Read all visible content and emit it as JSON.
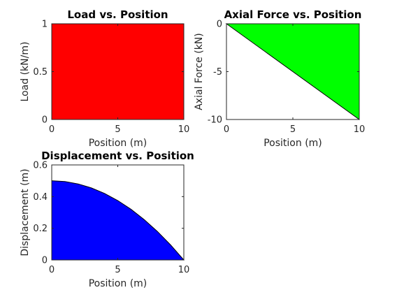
{
  "figure": {
    "background": "#ffffff"
  },
  "chart_data": [
    {
      "type": "area",
      "title": "Load vs. Position",
      "xlabel": "Position (m)",
      "ylabel": "Load (kN/m)",
      "xlim": [
        0,
        10
      ],
      "ylim": [
        0,
        1
      ],
      "xticks": [
        0,
        5,
        10
      ],
      "yticks": [
        0,
        0.5,
        1
      ],
      "xtick_labels": [
        "0",
        "5",
        "10"
      ],
      "ytick_labels": [
        "0",
        "0.5",
        "1"
      ],
      "fill_color": "#ff0000",
      "fill_baseline": 0,
      "x": [
        0,
        10
      ],
      "y": [
        1,
        1
      ]
    },
    {
      "type": "area",
      "title": "Axial Force vs. Position",
      "xlabel": "Position (m)",
      "ylabel": "Axial Force (kN)",
      "xlim": [
        0,
        10
      ],
      "ylim": [
        -10,
        0
      ],
      "xticks": [
        0,
        5,
        10
      ],
      "yticks": [
        -10,
        -5,
        0
      ],
      "xtick_labels": [
        "0",
        "5",
        "10"
      ],
      "ytick_labels": [
        "-10",
        "-5",
        "0"
      ],
      "fill_color": "#00ff00",
      "fill_baseline": 0,
      "x": [
        0,
        10
      ],
      "y": [
        0,
        -10
      ]
    },
    {
      "type": "area",
      "title": "Displacement vs. Position",
      "xlabel": "Position (m)",
      "ylabel": "Displacement (m)",
      "xlim": [
        0,
        10
      ],
      "ylim": [
        0,
        0.6
      ],
      "xticks": [
        0,
        5,
        10
      ],
      "yticks": [
        0,
        0.2,
        0.4,
        0.6
      ],
      "xtick_labels": [
        "0",
        "5",
        "10"
      ],
      "ytick_labels": [
        "0",
        "0.2",
        "0.4",
        "0.6"
      ],
      "fill_color": "#0000ff",
      "fill_baseline": 0,
      "x": [
        0,
        1,
        2,
        3,
        4,
        5,
        6,
        7,
        8,
        9,
        10
      ],
      "y": [
        0.5,
        0.495,
        0.48,
        0.455,
        0.42,
        0.375,
        0.32,
        0.255,
        0.18,
        0.095,
        0
      ]
    }
  ]
}
